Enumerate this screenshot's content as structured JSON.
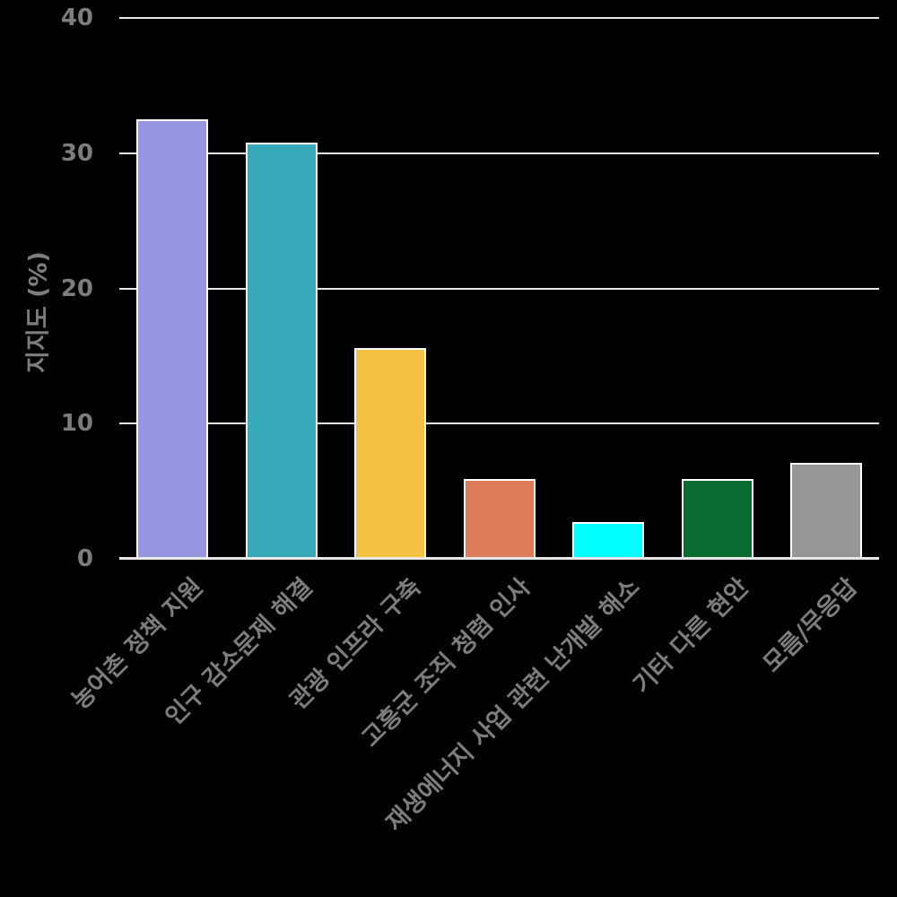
{
  "chart_data": {
    "type": "bar",
    "title": "",
    "xlabel": "",
    "ylabel": "지지도 (%)",
    "categories": [
      "농어촌 정책 지원",
      "인구 감소문제 해결",
      "관광 인프라 구축",
      "고흥군 조직 청렴 인사",
      "재생에너지 사업 관련 난개발 해소",
      "기타 다른 현안",
      "모름/무응답"
    ],
    "values": [
      32.5,
      30.8,
      15.6,
      5.9,
      2.7,
      5.9,
      7.1
    ],
    "bar_colors": [
      "#9895e0",
      "#37a9b9",
      "#f5c142",
      "#db7b58",
      "#00ffff",
      "#0c6b32",
      "#969696"
    ],
    "ylim": [
      0,
      40
    ],
    "yticks": [
      0,
      10,
      20,
      30,
      40
    ],
    "grid": "horizontal",
    "legend": null
  },
  "style": {
    "background": "#000000",
    "grid_color": "#e8e8e8",
    "axis_line_color": "#e8e8e8",
    "tick_label_color": "#7d7d7d",
    "bar_edge_color": "#ffffff"
  }
}
